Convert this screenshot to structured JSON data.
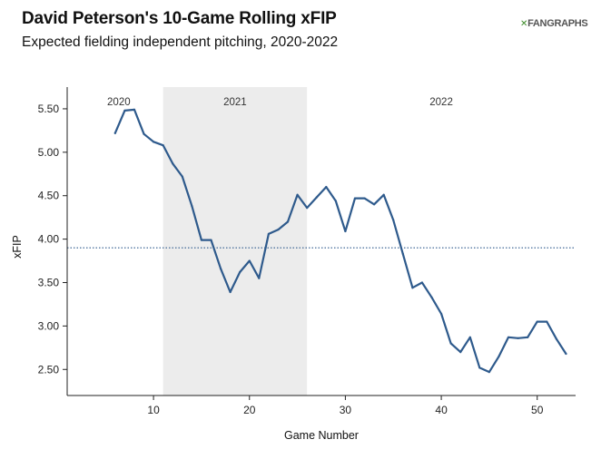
{
  "header": {
    "title": "David Peterson's 10-Game Rolling xFIP",
    "subtitle": "Expected fielding independent pitching, 2020-2022",
    "logo_mark": "✕",
    "logo_text": "FANGRAPHS"
  },
  "chart_data": {
    "type": "line",
    "title": "David Peterson's 10-Game Rolling xFIP",
    "subtitle": "Expected fielding independent pitching, 2020-2022",
    "xlabel": "Game Number",
    "ylabel": "xFIP",
    "xlim": [
      1,
      54
    ],
    "ylim": [
      2.2,
      5.75
    ],
    "x_ticks": [
      10,
      20,
      30,
      40,
      50
    ],
    "y_ticks": [
      2.5,
      3.0,
      3.5,
      4.0,
      4.5,
      5.0,
      5.5
    ],
    "y_tick_labels": [
      "2.50",
      "3.00",
      "3.50",
      "4.00",
      "4.50",
      "5.00",
      "5.50"
    ],
    "reference_line": {
      "y": 3.9,
      "style": "dotted"
    },
    "line_color": "#2e5a8c",
    "shade_color": "#ececec",
    "seasons": [
      {
        "label": "2020",
        "start": 1,
        "end": 11,
        "shaded": false
      },
      {
        "label": "2021",
        "start": 11,
        "end": 26,
        "shaded": true
      },
      {
        "label": "2022",
        "start": 26,
        "end": 54,
        "shaded": false
      }
    ],
    "series": [
      {
        "x": [
          6,
          7,
          8,
          9,
          10,
          11,
          12,
          13,
          14,
          15,
          16,
          17,
          18,
          19,
          20,
          21,
          22,
          23,
          24,
          25,
          26,
          27,
          28,
          29,
          30,
          31,
          32,
          33,
          34,
          35,
          36,
          37,
          38,
          39,
          40,
          41,
          42,
          43,
          44,
          45,
          46,
          47,
          48,
          49,
          50,
          51,
          52,
          53
        ],
        "values": [
          5.22,
          5.48,
          5.49,
          5.21,
          5.12,
          5.08,
          4.87,
          4.72,
          4.38,
          3.99,
          3.99,
          3.66,
          3.39,
          3.62,
          3.75,
          3.55,
          4.06,
          4.11,
          4.2,
          4.51,
          4.36,
          4.48,
          4.6,
          4.44,
          4.09,
          4.47,
          4.47,
          4.4,
          4.51,
          4.22,
          3.83,
          3.44,
          3.5,
          3.33,
          3.14,
          2.8,
          2.7,
          2.87,
          2.52,
          2.47,
          2.65,
          2.87,
          2.86,
          2.87,
          3.05,
          3.05,
          2.85,
          2.68
        ]
      }
    ]
  }
}
